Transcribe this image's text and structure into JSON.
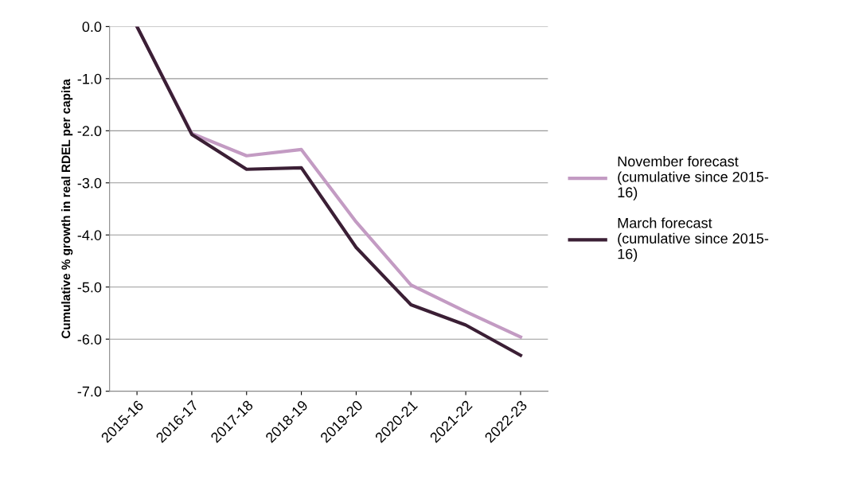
{
  "chart_data": {
    "type": "line",
    "ylabel": "Cumulative % growth in real RDEL per capita",
    "categories": [
      "2015-16",
      "2016-17",
      "2017-18",
      "2018-19",
      "2019-20",
      "2020-21",
      "2021-22",
      "2022-23"
    ],
    "series": [
      {
        "name": "November forecast\n(cumulative since 2015-\n16)",
        "color": "#c39bc3",
        "values": [
          0.0,
          -2.05,
          -2.48,
          -2.36,
          -3.75,
          -4.96,
          -5.47,
          -5.96
        ]
      },
      {
        "name": "March forecast\n(cumulative since 2015-\n16)",
        "color": "#3b1f35",
        "values": [
          0.0,
          -2.07,
          -2.74,
          -2.71,
          -4.24,
          -5.34,
          -5.73,
          -6.31
        ]
      }
    ],
    "ylim": [
      -7.0,
      0.0
    ],
    "yticks": [
      {
        "value": 0,
        "label": "0.0"
      },
      {
        "value": -1,
        "label": "-1.0"
      },
      {
        "value": -2,
        "label": "-2.0"
      },
      {
        "value": -3,
        "label": "-3.0"
      },
      {
        "value": -4,
        "label": "-4.0"
      },
      {
        "value": -5,
        "label": "-5.0"
      },
      {
        "value": -6,
        "label": "-6.0"
      },
      {
        "value": -7,
        "label": "-7.0"
      }
    ],
    "grid": "y",
    "legend": "right",
    "marker": "none",
    "line_style": "solid"
  }
}
